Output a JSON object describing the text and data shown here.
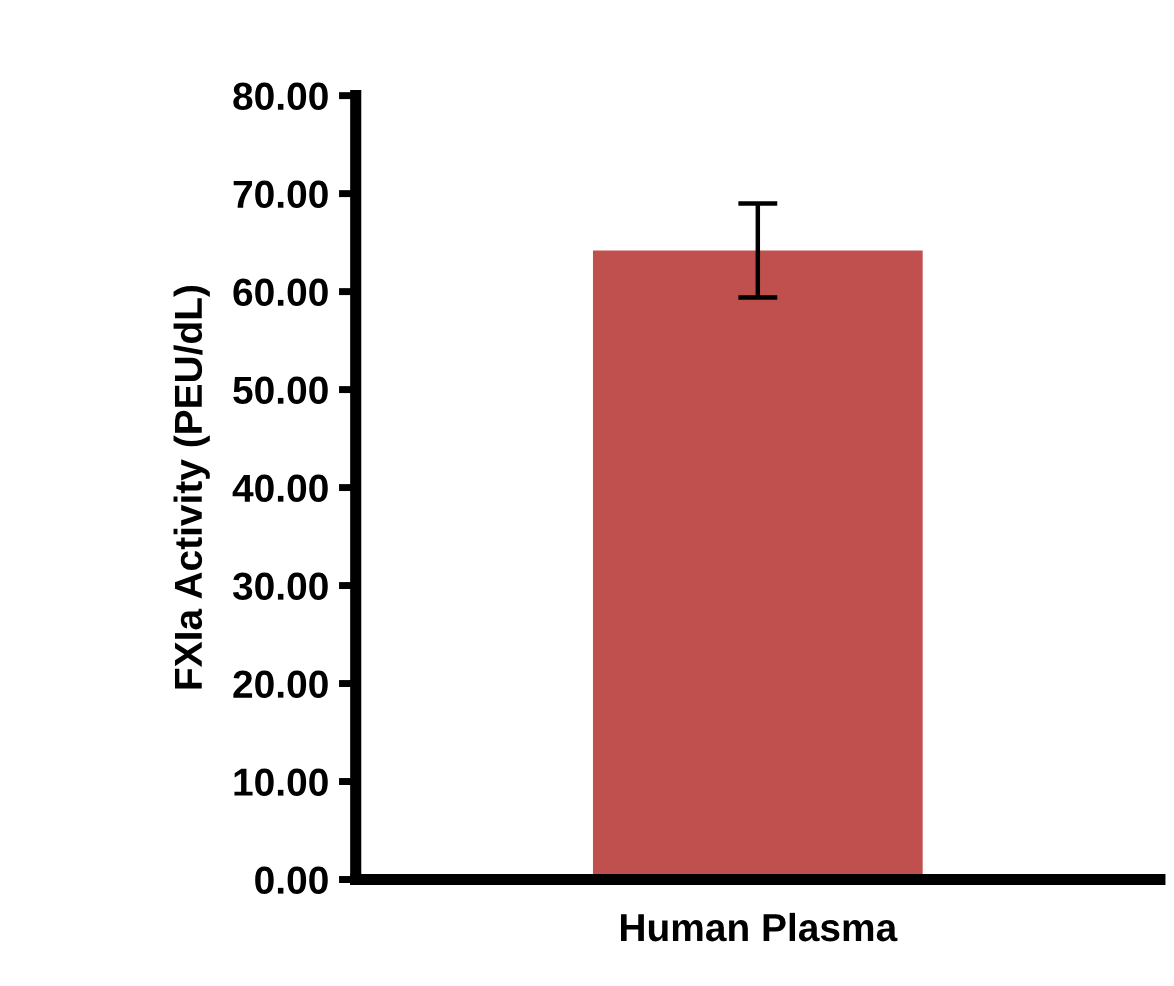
{
  "chart_data": {
    "type": "bar",
    "ylabel": "FXIa Activity (PEU/dL)",
    "categories": [
      "Human Plasma"
    ],
    "values": [
      64.2
    ],
    "errors": [
      4.8
    ],
    "color": "#c0504d",
    "ylim": [
      0,
      80
    ],
    "yticks": [
      {
        "value": 0,
        "label": "0.00"
      },
      {
        "value": 10,
        "label": "10.00"
      },
      {
        "value": 20,
        "label": "20.00"
      },
      {
        "value": 30,
        "label": "30.00"
      },
      {
        "value": 40,
        "label": "40.00"
      },
      {
        "value": 50,
        "label": "50.00"
      },
      {
        "value": 60,
        "label": "60.00"
      },
      {
        "value": 70,
        "label": "70.00"
      },
      {
        "value": 80,
        "label": "80.00"
      }
    ],
    "grid": false
  }
}
